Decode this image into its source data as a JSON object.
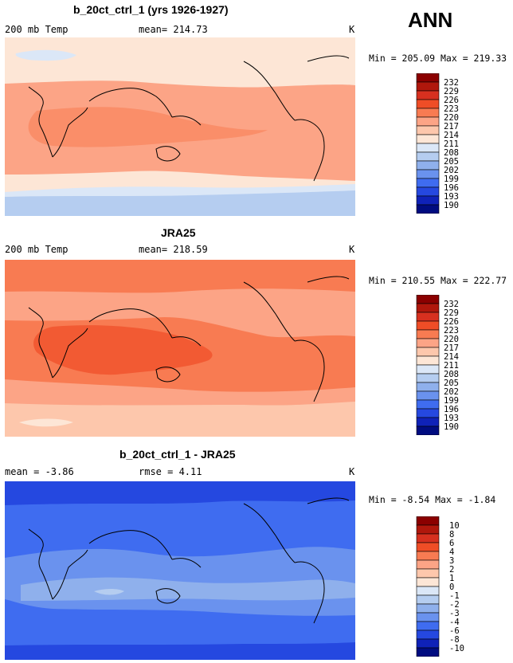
{
  "season": "ANN",
  "panels": [
    {
      "title": "b_20ct_ctrl_1 (yrs 1926-1927)",
      "left": "200 mb Temp",
      "center": "mean= 214.73",
      "right": "K",
      "min_max": "Min = 205.09 Max = 219.33",
      "colorbar": [
        "232",
        "229",
        "226",
        "223",
        "220",
        "217",
        "214",
        "211",
        "208",
        "205",
        "202",
        "199",
        "196",
        "193",
        "190"
      ]
    },
    {
      "title": "JRA25",
      "left": "200 mb Temp",
      "center": "mean= 218.59",
      "right": "K",
      "min_max": "Min = 210.55 Max = 222.77",
      "colorbar": [
        "232",
        "229",
        "226",
        "223",
        "220",
        "217",
        "214",
        "211",
        "208",
        "205",
        "202",
        "199",
        "196",
        "193",
        "190"
      ]
    },
    {
      "title": "b_20ct_ctrl_1 - JRA25",
      "left": "mean =  -3.86",
      "center": "rmse =  4.11",
      "right": "K",
      "min_max": "Min =  -8.54 Max =  -1.84",
      "colorbar": [
        "10",
        "8",
        "6",
        "4",
        "3",
        "2",
        "1",
        "0",
        "-1",
        "-2",
        "-3",
        "-4",
        "-6",
        "-8",
        "-10"
      ]
    }
  ],
  "colorbar_colors": [
    "#8b0000",
    "#b0170c",
    "#d7301f",
    "#ef4d26",
    "#f87b52",
    "#fca486",
    "#fdc7ac",
    "#fde6d6",
    "#dbe7f7",
    "#b5cdf0",
    "#8fb0ec",
    "#6a92ee",
    "#3f6cf0",
    "#2548e0",
    "#0f22b8",
    "#000c80"
  ],
  "chart_data": [
    {
      "type": "heatmap",
      "title": "b_20ct_ctrl_1 (yrs 1926-1927)",
      "variable": "200 mb Temp",
      "units": "K",
      "mean": 214.73,
      "min": 205.09,
      "max": 219.33,
      "levels": [
        190,
        193,
        196,
        199,
        202,
        205,
        208,
        211,
        214,
        217,
        220,
        223,
        226,
        229,
        232
      ]
    },
    {
      "type": "heatmap",
      "title": "JRA25",
      "variable": "200 mb Temp",
      "units": "K",
      "mean": 218.59,
      "min": 210.55,
      "max": 222.77,
      "levels": [
        190,
        193,
        196,
        199,
        202,
        205,
        208,
        211,
        214,
        217,
        220,
        223,
        226,
        229,
        232
      ]
    },
    {
      "type": "heatmap",
      "title": "b_20ct_ctrl_1 - JRA25",
      "units": "K",
      "mean": -3.86,
      "rmse": 4.11,
      "min": -8.54,
      "max": -1.84,
      "levels": [
        -10,
        -8,
        -6,
        -4,
        -3,
        -2,
        -1,
        0,
        1,
        2,
        3,
        4,
        6,
        8,
        10
      ]
    }
  ]
}
